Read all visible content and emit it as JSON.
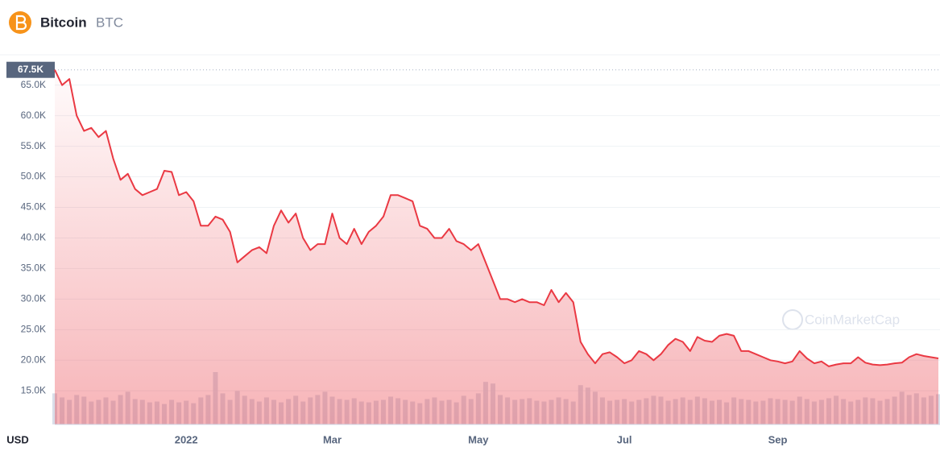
{
  "header": {
    "name": "Bitcoin",
    "symbol": "BTC"
  },
  "chart_data": {
    "type": "line",
    "ylabel": "USD",
    "watermark": "CoinMarketCap",
    "reference_line": {
      "value": 67500,
      "label": "67.5K"
    },
    "categories": [
      null,
      null,
      null,
      null,
      null,
      null,
      null,
      null,
      null,
      null,
      null,
      null,
      null,
      null,
      null,
      null,
      null,
      null,
      "2022",
      null,
      null,
      null,
      null,
      null,
      null,
      null,
      null,
      null,
      null,
      null,
      null,
      null,
      null,
      null,
      null,
      null,
      null,
      null,
      "Mar",
      null,
      null,
      null,
      null,
      null,
      null,
      null,
      null,
      null,
      null,
      null,
      null,
      null,
      null,
      null,
      null,
      null,
      null,
      null,
      "May",
      null,
      null,
      null,
      null,
      null,
      null,
      null,
      null,
      null,
      null,
      null,
      null,
      null,
      null,
      null,
      null,
      null,
      null,
      null,
      "Jul",
      null,
      null,
      null,
      null,
      null,
      null,
      null,
      null,
      null,
      null,
      null,
      null,
      null,
      null,
      null,
      null,
      null,
      null,
      null,
      null,
      "Sep",
      null,
      null,
      null,
      null,
      null,
      null,
      null,
      null,
      null,
      null,
      null,
      null,
      null,
      null,
      null,
      null,
      null,
      null,
      null,
      null,
      null,
      null
    ],
    "series": [
      {
        "color": "#ea3943",
        "values": [
          67500,
          65000,
          66000,
          60000,
          57500,
          58000,
          56500,
          57500,
          53000,
          49500,
          50500,
          48000,
          47000,
          47500,
          48000,
          51000,
          50800,
          47000,
          47500,
          46000,
          42000,
          42000,
          43500,
          43000,
          41000,
          36000,
          37000,
          38000,
          38500,
          37500,
          42000,
          44500,
          42500,
          44000,
          40000,
          38000,
          39000,
          39000,
          44000,
          40000,
          39000,
          41500,
          39000,
          41000,
          42000,
          43500,
          47000,
          47000,
          46500,
          46000,
          42000,
          41500,
          40000,
          40000,
          41500,
          39500,
          39000,
          38000,
          39000,
          36000,
          33000,
          30000,
          30000,
          29500,
          30000,
          29500,
          29500,
          29000,
          31500,
          29500,
          31000,
          29500,
          23000,
          21000,
          19500,
          21000,
          21300,
          20500,
          19500,
          20000,
          21500,
          21000,
          20000,
          21000,
          22500,
          23500,
          23000,
          21500,
          23800,
          23200,
          23000,
          24000,
          24300,
          24000,
          21500,
          21500,
          21000,
          20500,
          20000,
          19800,
          19500,
          19800,
          21500,
          20300,
          19500,
          19800,
          19000,
          19300,
          19500,
          19500,
          20500,
          19600,
          19300,
          19200,
          19300,
          19500,
          19600,
          20500,
          21000,
          20700,
          20500,
          20300
        ]
      },
      {
        "type": "bar",
        "axis": "y2",
        "color": "#cfd6e4",
        "values": [
          38,
          33,
          30,
          36,
          34,
          28,
          30,
          33,
          29,
          36,
          40,
          31,
          30,
          27,
          28,
          25,
          30,
          27,
          29,
          26,
          33,
          36,
          64,
          38,
          30,
          41,
          35,
          31,
          28,
          33,
          30,
          27,
          31,
          35,
          28,
          33,
          36,
          40,
          34,
          31,
          30,
          32,
          28,
          27,
          29,
          30,
          34,
          32,
          30,
          28,
          26,
          31,
          33,
          29,
          30,
          27,
          35,
          31,
          38,
          52,
          50,
          36,
          33,
          30,
          31,
          32,
          29,
          28,
          30,
          33,
          31,
          28,
          48,
          45,
          40,
          33,
          29,
          30,
          31,
          28,
          30,
          32,
          35,
          34,
          29,
          31,
          33,
          30,
          34,
          32,
          29,
          30,
          27,
          33,
          31,
          30,
          28,
          29,
          32,
          31,
          30,
          29,
          34,
          31,
          28,
          30,
          32,
          35,
          31,
          28,
          30,
          33,
          32,
          29,
          31,
          34,
          40,
          36,
          38,
          33,
          35,
          37
        ]
      }
    ],
    "ylim": [
      9500,
      69700
    ],
    "y2lim": [
      0,
      450
    ],
    "yticks": [
      {
        "value": 15000,
        "label": "15.0K"
      },
      {
        "value": 20000,
        "label": "20.0K"
      },
      {
        "value": 25000,
        "label": "25.0K"
      },
      {
        "value": 30000,
        "label": "30.0K"
      },
      {
        "value": 35000,
        "label": "35.0K"
      },
      {
        "value": 40000,
        "label": "40.0K"
      },
      {
        "value": 45000,
        "label": "45.0K"
      },
      {
        "value": 50000,
        "label": "50.0K"
      },
      {
        "value": 55000,
        "label": "55.0K"
      },
      {
        "value": 60000,
        "label": "60.0K"
      },
      {
        "value": 65000,
        "label": "65.0K"
      }
    ],
    "grid": true
  }
}
